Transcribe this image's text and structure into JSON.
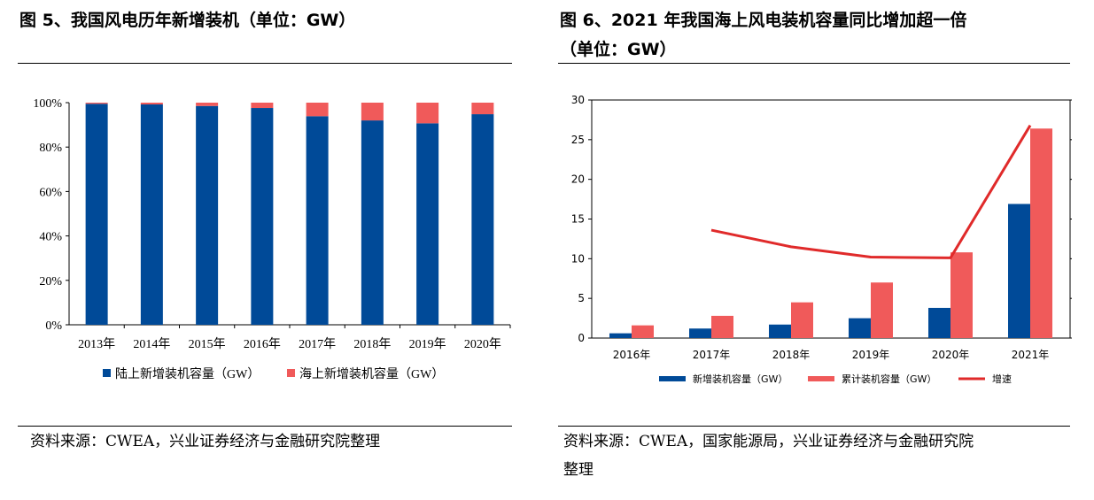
{
  "figures": [
    {
      "title": "图 5、我国风电历年新增装机（单位：GW）",
      "source": "资料来源：CWEA，兴业证券经济与金融研究院整理",
      "chart_data": {
        "type": "bar",
        "stacked": true,
        "normalized": true,
        "categories": [
          "2013年",
          "2014年",
          "2015年",
          "2016年",
          "2017年",
          "2018年",
          "2019年",
          "2020年"
        ],
        "series": [
          {
            "name": "陆上新增装机容量（GW）",
            "color": "#004a98",
            "values": [
              99.5,
              99.2,
              98.5,
              97.6,
              93.9,
              92.0,
              90.7,
              94.8
            ]
          },
          {
            "name": "海上新增装机容量（GW）",
            "color": "#f05a5a",
            "values": [
              0.5,
              0.8,
              1.5,
              2.4,
              6.1,
              8.0,
              9.3,
              5.2
            ]
          }
        ],
        "yticks": [
          "0%",
          "20%",
          "40%",
          "60%",
          "80%",
          "100%"
        ],
        "ylim": [
          0,
          100
        ],
        "grid": false,
        "legend": "bottom"
      }
    },
    {
      "title": "图 6、2021 年我国海上风电装机容量同比增加超一倍（单位：GW）",
      "title_lines": [
        "图 6、2021 年我国海上风电装机容量同比增加超一倍",
        "（单位：GW）"
      ],
      "source": "资料来源：CWEA，国家能源局，兴业证券经济与金融研究院整理",
      "source_lines": [
        "资料来源：CWEA，国家能源局，兴业证券经济与金融研究院",
        "整理"
      ],
      "chart_data": {
        "type": "bar",
        "categories": [
          "2016年",
          "2017年",
          "2018年",
          "2019年",
          "2020年",
          "2021年"
        ],
        "series": [
          {
            "name": "新增装机容量（GW）",
            "type": "bar",
            "color": "#004a98",
            "values": [
              0.6,
              1.2,
              1.7,
              2.5,
              3.8,
              16.9
            ]
          },
          {
            "name": "累计装机容量（GW）",
            "type": "bar",
            "color": "#f05a5a",
            "values": [
              1.6,
              2.8,
              4.5,
              7.0,
              10.8,
              26.4
            ]
          },
          {
            "name": "增速",
            "type": "line",
            "color": "#e02a2a",
            "values": [
              null,
              13.6,
              11.5,
              10.2,
              10.1,
              26.8
            ]
          }
        ],
        "yticks": [
          "0",
          "5",
          "10",
          "15",
          "20",
          "25",
          "30"
        ],
        "ylim": [
          0,
          30
        ],
        "grid": false,
        "legend": "bottom"
      }
    }
  ]
}
